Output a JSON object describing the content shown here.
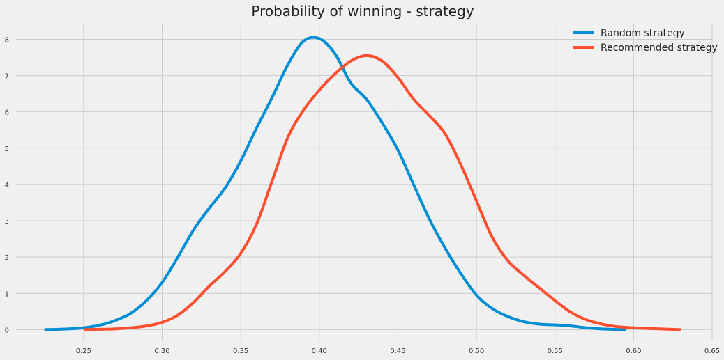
{
  "chart_data": {
    "type": "line",
    "title": "Probability of winning - strategy",
    "xlabel": "",
    "ylabel": "",
    "xlim": [
      0.207,
      0.65
    ],
    "ylim": [
      -0.3,
      8.45
    ],
    "xticks": [
      0.25,
      0.3,
      0.35,
      0.4,
      0.45,
      0.5,
      0.55,
      0.6,
      0.65
    ],
    "xtick_labels": [
      "0.25",
      "0.30",
      "0.35",
      "0.40",
      "0.45",
      "0.50",
      "0.55",
      "0.60",
      "0.65"
    ],
    "yticks": [
      0,
      1,
      2,
      3,
      4,
      5,
      6,
      7,
      8
    ],
    "ytick_labels": [
      "0",
      "1",
      "2",
      "3",
      "4",
      "5",
      "6",
      "7",
      "8"
    ],
    "grid": true,
    "legend_position": "top-right",
    "series": [
      {
        "name": "Random strategy",
        "color": "#008fd5",
        "x": [
          0.225,
          0.24,
          0.25,
          0.26,
          0.27,
          0.28,
          0.29,
          0.3,
          0.31,
          0.32,
          0.33,
          0.34,
          0.35,
          0.36,
          0.37,
          0.38,
          0.39,
          0.4,
          0.41,
          0.42,
          0.43,
          0.44,
          0.45,
          0.46,
          0.47,
          0.48,
          0.49,
          0.5,
          0.51,
          0.52,
          0.53,
          0.54,
          0.55,
          0.56,
          0.57,
          0.58,
          0.595
        ],
        "y": [
          0.0,
          0.02,
          0.05,
          0.12,
          0.25,
          0.45,
          0.8,
          1.3,
          2.0,
          2.75,
          3.35,
          3.9,
          4.65,
          5.55,
          6.4,
          7.3,
          7.95,
          8.02,
          7.6,
          6.8,
          6.35,
          5.7,
          4.95,
          4.0,
          3.05,
          2.25,
          1.55,
          0.95,
          0.58,
          0.36,
          0.22,
          0.15,
          0.13,
          0.1,
          0.05,
          0.02,
          0.0
        ]
      },
      {
        "name": "Recommended strategy",
        "color": "#fc4f30",
        "x": [
          0.25,
          0.26,
          0.27,
          0.28,
          0.29,
          0.3,
          0.31,
          0.32,
          0.33,
          0.34,
          0.35,
          0.36,
          0.37,
          0.38,
          0.39,
          0.4,
          0.41,
          0.42,
          0.43,
          0.44,
          0.45,
          0.46,
          0.47,
          0.48,
          0.49,
          0.5,
          0.51,
          0.52,
          0.53,
          0.54,
          0.55,
          0.56,
          0.57,
          0.58,
          0.59,
          0.6,
          0.61,
          0.63
        ],
        "y": [
          0.0,
          0.01,
          0.02,
          0.05,
          0.1,
          0.2,
          0.4,
          0.75,
          1.2,
          1.6,
          2.1,
          2.9,
          4.1,
          5.3,
          6.05,
          6.6,
          7.05,
          7.4,
          7.55,
          7.4,
          6.95,
          6.35,
          5.9,
          5.4,
          4.55,
          3.55,
          2.55,
          1.9,
          1.5,
          1.15,
          0.8,
          0.48,
          0.27,
          0.15,
          0.08,
          0.05,
          0.03,
          0.0
        ]
      }
    ]
  }
}
